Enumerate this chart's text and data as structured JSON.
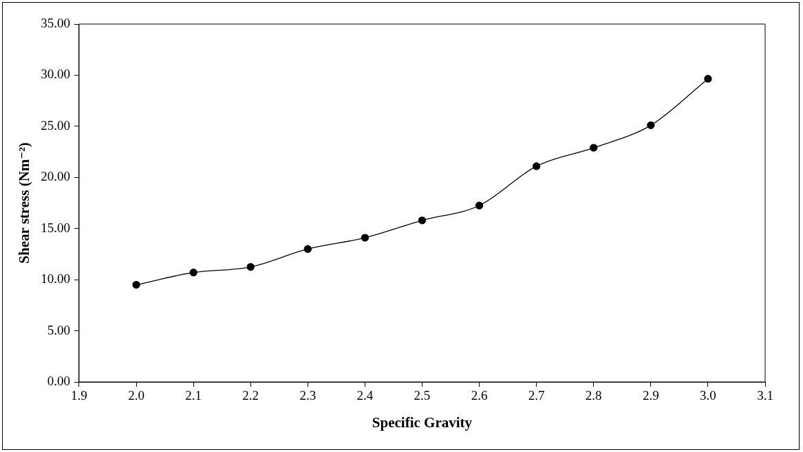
{
  "chart_data": {
    "type": "line",
    "xlabel": "Specific Gravity",
    "ylabel": "Shear stress (Nm⁻²)",
    "x": [
      2.0,
      2.1,
      2.2,
      2.3,
      2.4,
      2.5,
      2.6,
      2.7,
      2.8,
      2.9,
      3.0
    ],
    "series": [
      {
        "color": "#000000",
        "values": [
          9.5,
          10.7,
          11.25,
          13.0,
          14.1,
          15.8,
          17.25,
          21.1,
          22.9,
          25.1,
          29.65
        ]
      }
    ],
    "xlim": [
      1.9,
      3.1
    ],
    "xticks": [
      {
        "value": 1.9,
        "label": "1.9"
      },
      {
        "value": 2.0,
        "label": "2.0"
      },
      {
        "value": 2.1,
        "label": "2.1"
      },
      {
        "value": 2.2,
        "label": "2.2"
      },
      {
        "value": 2.3,
        "label": "2.3"
      },
      {
        "value": 2.4,
        "label": "2.4"
      },
      {
        "value": 2.5,
        "label": "2.5"
      },
      {
        "value": 2.6,
        "label": "2.6"
      },
      {
        "value": 2.7,
        "label": "2.7"
      },
      {
        "value": 2.8,
        "label": "2.8"
      },
      {
        "value": 2.9,
        "label": "2.9"
      },
      {
        "value": 3.0,
        "label": "3.0"
      },
      {
        "value": 3.1,
        "label": "3.1"
      }
    ],
    "ylim": [
      0,
      35
    ],
    "yticks": [
      {
        "value": 0,
        "label": "0.00"
      },
      {
        "value": 5,
        "label": "5.00"
      },
      {
        "value": 10,
        "label": "10.00"
      },
      {
        "value": 15,
        "label": "15.00"
      },
      {
        "value": 20,
        "label": "20.00"
      },
      {
        "value": 25,
        "label": "25.00"
      },
      {
        "value": 30,
        "label": "30.00"
      },
      {
        "value": 35,
        "label": "35.00"
      }
    ],
    "grid": false,
    "legend": false,
    "marker": "circle",
    "line_style": "solid"
  }
}
